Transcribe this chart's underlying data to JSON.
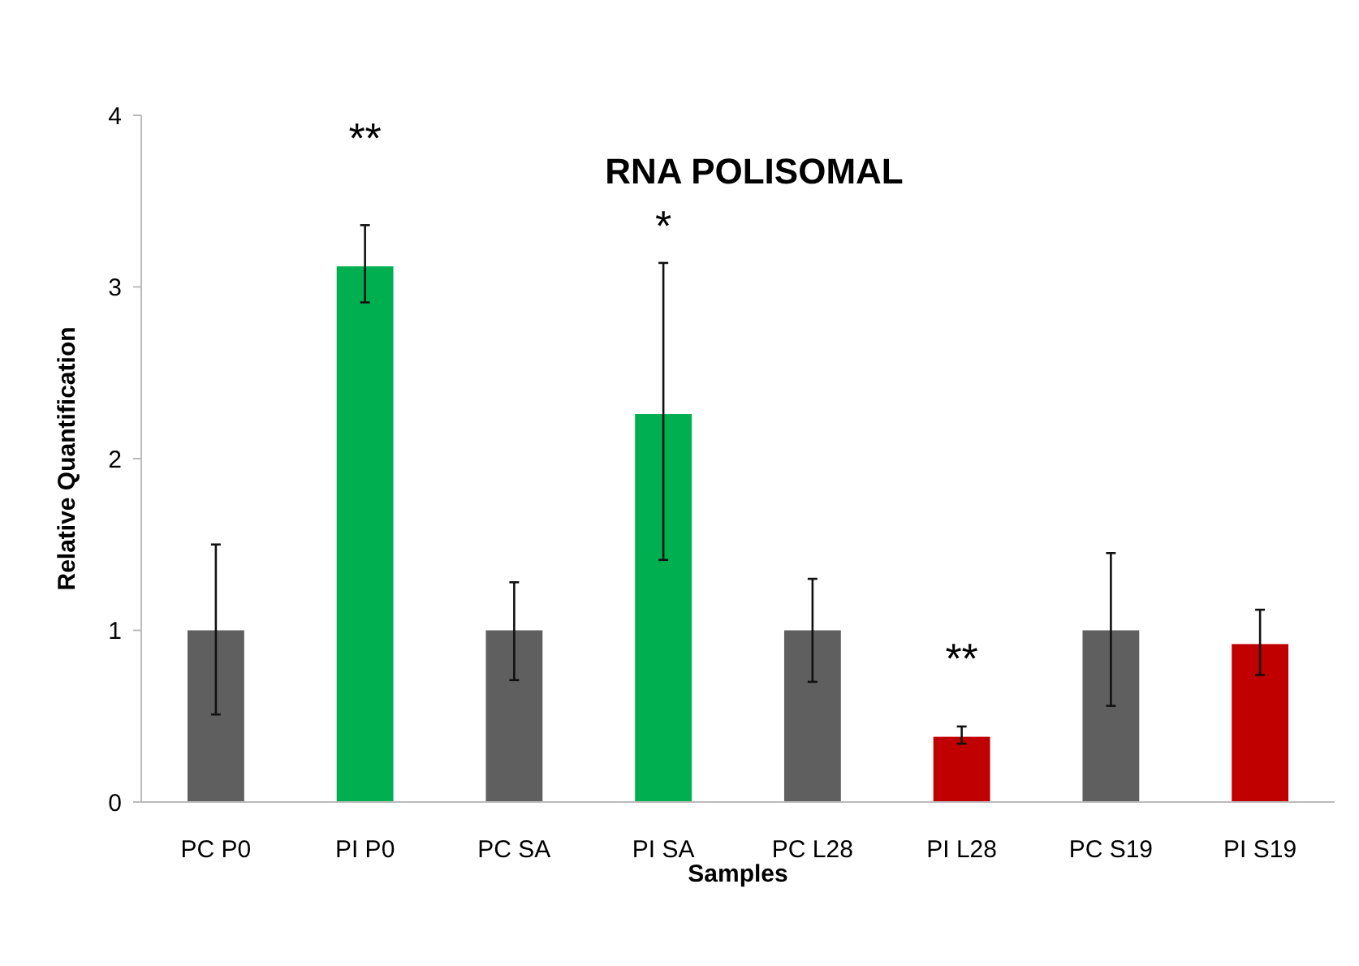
{
  "chart_data": {
    "type": "bar",
    "title": "RNA POLISOMAL",
    "xlabel": "Samples",
    "ylabel": "Relative Quantification",
    "categories": [
      "PC P0",
      "PI P0",
      "PC SA",
      "PI SA",
      "PC L28",
      "PI L28",
      "PC S19",
      "PI S19"
    ],
    "values": [
      1,
      3.12,
      1,
      2.26,
      1,
      0.38,
      1,
      0.92
    ],
    "colors": [
      "#5f5f5f",
      "#00b050",
      "#5f5f5f",
      "#00b050",
      "#5f5f5f",
      "#c00000",
      "#5f5f5f",
      "#c00000"
    ],
    "errors": [
      [
        0.51,
        1.5
      ],
      [
        2.91,
        3.36
      ],
      [
        0.71,
        1.28
      ],
      [
        1.41,
        3.14
      ],
      [
        0.7,
        1.3
      ],
      [
        0.34,
        0.44
      ],
      [
        0.56,
        1.45
      ],
      [
        0.74,
        1.12
      ]
    ],
    "ylim": [
      0,
      4
    ],
    "yticks": [
      0,
      1,
      2,
      3,
      4
    ],
    "grid": false,
    "annotations": [
      "**",
      "*",
      "**"
    ]
  }
}
